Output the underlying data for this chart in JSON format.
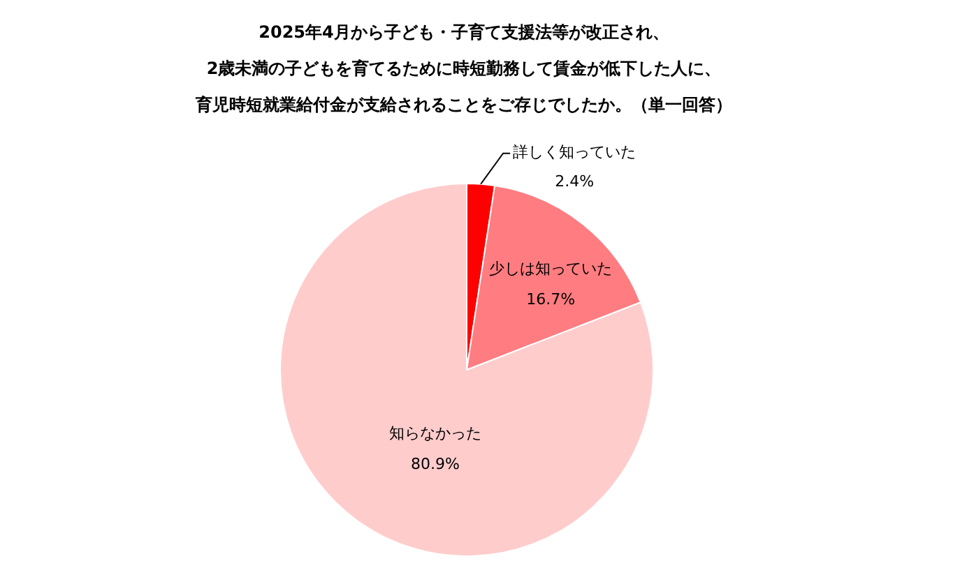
{
  "chart_data": {
    "type": "pie",
    "title": "2025年4月から子ども・子育て支援法等が改正され、2歳未満の子どもを育てるために時短勤務して賃金が低下した人に、育児時短就業給付金が支給されることをご存じでしたか。（単一回答）",
    "categories": [
      "詳しく知っていた",
      "少しは知っていた",
      "知らなかった"
    ],
    "values": [
      2.4,
      16.7,
      80.9
    ],
    "colors": [
      "#ff0000",
      "#ff7c80",
      "#ffcccc"
    ],
    "value_labels": [
      "2.4%",
      "16.7%",
      "80.9%"
    ],
    "legend": false
  }
}
